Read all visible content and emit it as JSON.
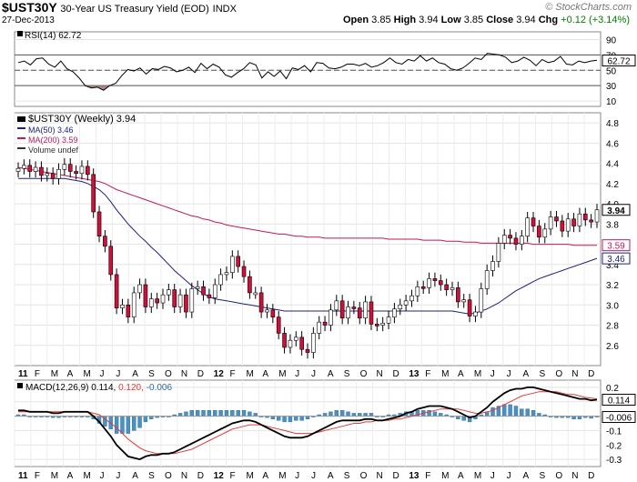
{
  "header": {
    "symbol": "$UST30Y",
    "description": "30-Year US Treasury Yield (EOD)",
    "exchange": "INDX",
    "date": "27-Dec-2013",
    "open_label": "Open",
    "open": "3.85",
    "high_label": "High",
    "high": "3.94",
    "low_label": "Low",
    "low": "3.85",
    "close_label": "Close",
    "close": "3.94",
    "chg_label": "Chg",
    "chg": "+0.12 (+3.14%)",
    "credit": "© StockCharts.com"
  },
  "rsi": {
    "label": "RSI(14)",
    "value": "62.72",
    "levels": [
      70,
      30
    ],
    "ticks": [
      90,
      70,
      50,
      30,
      10
    ],
    "values": [
      60,
      62,
      57,
      65,
      66,
      58,
      54,
      62,
      52,
      48,
      40,
      30,
      27,
      28,
      24,
      30,
      33,
      43,
      51,
      49,
      53,
      45,
      52,
      51,
      55,
      53,
      48,
      50,
      54,
      47,
      59,
      52,
      58,
      54,
      44,
      41,
      47,
      52,
      60,
      57,
      40,
      48,
      42,
      49,
      39,
      53,
      51,
      56,
      48,
      60,
      59,
      53,
      52,
      54,
      58,
      58,
      56,
      59,
      54,
      56,
      60,
      66,
      60,
      58,
      64,
      62,
      69,
      62,
      66,
      60,
      58,
      52,
      50,
      53,
      59,
      66,
      64,
      72,
      71,
      70,
      67,
      60,
      62,
      67,
      63,
      56,
      64,
      60,
      62,
      68,
      58,
      57,
      62,
      60,
      62,
      63
    ]
  },
  "chart_data": {
    "type": "candlestick",
    "title": "$UST30Y (Weekly) 3.94",
    "legend": [
      {
        "name": "$UST30Y (Weekly) 3.94",
        "color": "#000000"
      },
      {
        "name": "MA(50) 3.46",
        "color": "#1a237e"
      },
      {
        "name": "MA(200) 3.59",
        "color": "#c2185b"
      },
      {
        "name": "Volume undef",
        "color": "#333333"
      }
    ],
    "ylim": [
      2.4,
      4.9
    ],
    "y_ticks": [
      4.8,
      4.6,
      4.4,
      4.2,
      4.0,
      3.8,
      3.6,
      3.4,
      3.2,
      3.0,
      2.8,
      2.6
    ],
    "y_tick_labels": [
      "4.8",
      "4.6",
      "4.4",
      "4.2",
      "4.0",
      "3.8",
      "3.6",
      "3.4",
      "3.2",
      "3.0",
      "2.8",
      "2.6"
    ],
    "price_labels": [
      {
        "text": "3.94",
        "value": 3.94,
        "color": "#000000",
        "bold": true
      },
      {
        "text": "3.59",
        "value": 3.59,
        "color": "#c2185b",
        "bold": false
      },
      {
        "text": "3.46",
        "value": 3.46,
        "color": "#1a237e",
        "bold": false
      }
    ],
    "close": [
      4.35,
      4.38,
      4.32,
      4.36,
      4.28,
      4.3,
      4.25,
      4.34,
      4.39,
      4.32,
      4.3,
      4.37,
      4.29,
      3.92,
      3.68,
      3.58,
      3.3,
      2.97,
      3.0,
      2.88,
      3.12,
      3.2,
      2.98,
      3.06,
      3.02,
      3.1,
      3.15,
      2.98,
      3.1,
      2.93,
      3.16,
      3.18,
      3.1,
      3.07,
      3.2,
      3.3,
      3.32,
      3.48,
      3.38,
      3.28,
      3.12,
      3.12,
      2.93,
      2.95,
      2.88,
      2.72,
      2.58,
      2.65,
      2.68,
      2.56,
      2.53,
      2.72,
      2.83,
      2.8,
      2.95,
      3.04,
      2.87,
      2.98,
      2.97,
      2.87,
      3.03,
      2.81,
      2.8,
      2.82,
      2.88,
      2.96,
      3.0,
      3.04,
      3.09,
      3.18,
      3.17,
      3.26,
      3.24,
      3.2,
      3.15,
      3.17,
      3.03,
      3.05,
      2.89,
      2.93,
      3.16,
      3.34,
      3.43,
      3.61,
      3.69,
      3.66,
      3.6,
      3.68,
      3.86,
      3.78,
      3.67,
      3.75,
      3.87,
      3.83,
      3.73,
      3.85,
      3.78,
      3.9,
      3.84,
      3.82,
      3.94
    ],
    "ma50": [
      4.25,
      4.25,
      4.25,
      4.25,
      4.25,
      4.25,
      4.25,
      4.25,
      4.25,
      4.24,
      4.23,
      4.22,
      4.2,
      4.17,
      4.14,
      4.09,
      4.02,
      3.94,
      3.87,
      3.8,
      3.74,
      3.68,
      3.63,
      3.57,
      3.52,
      3.46,
      3.4,
      3.34,
      3.29,
      3.24,
      3.19,
      3.15,
      3.11,
      3.08,
      3.06,
      3.05,
      3.04,
      3.03,
      3.02,
      3.01,
      3.0,
      2.99,
      2.98,
      2.97,
      2.96,
      2.95,
      2.94,
      2.94,
      2.94,
      2.94,
      2.94,
      2.94,
      2.94,
      2.94,
      2.94,
      2.94,
      2.94,
      2.94,
      2.94,
      2.94,
      2.94,
      2.94,
      2.94,
      2.94,
      2.94,
      2.94,
      2.94,
      2.94,
      2.94,
      2.94,
      2.94,
      2.94,
      2.94,
      2.94,
      2.94,
      2.94,
      2.93,
      2.92,
      2.91,
      2.92,
      2.94,
      2.96,
      2.99,
      3.02,
      3.06,
      3.1,
      3.14,
      3.17,
      3.2,
      3.23,
      3.26,
      3.28,
      3.3,
      3.32,
      3.34,
      3.36,
      3.38,
      3.4,
      3.42,
      3.44,
      3.46
    ],
    "ma200": [
      4.36,
      4.35,
      4.34,
      4.33,
      4.32,
      4.31,
      4.3,
      4.29,
      4.28,
      4.27,
      4.26,
      4.25,
      4.24,
      4.23,
      4.22,
      4.2,
      4.17,
      4.14,
      4.12,
      4.1,
      4.08,
      4.06,
      4.04,
      4.02,
      4.0,
      3.98,
      3.96,
      3.94,
      3.92,
      3.9,
      3.88,
      3.87,
      3.85,
      3.84,
      3.82,
      3.81,
      3.79,
      3.78,
      3.77,
      3.76,
      3.75,
      3.74,
      3.73,
      3.72,
      3.71,
      3.7,
      3.7,
      3.69,
      3.68,
      3.68,
      3.67,
      3.67,
      3.67,
      3.66,
      3.66,
      3.66,
      3.66,
      3.66,
      3.66,
      3.66,
      3.66,
      3.66,
      3.66,
      3.66,
      3.65,
      3.65,
      3.65,
      3.65,
      3.65,
      3.65,
      3.64,
      3.64,
      3.64,
      3.64,
      3.63,
      3.63,
      3.63,
      3.62,
      3.62,
      3.62,
      3.61,
      3.61,
      3.61,
      3.61,
      3.61,
      3.61,
      3.61,
      3.61,
      3.61,
      3.6,
      3.6,
      3.6,
      3.6,
      3.6,
      3.6,
      3.6,
      3.59,
      3.59,
      3.59,
      3.59,
      3.59
    ],
    "x_labels": [
      "11",
      "F",
      "M",
      "A",
      "M",
      "J",
      "J",
      "A",
      "S",
      "O",
      "N",
      "D",
      "12",
      "F",
      "M",
      "A",
      "M",
      "J",
      "J",
      "A",
      "S",
      "O",
      "N",
      "D",
      "13",
      "F",
      "M",
      "A",
      "M",
      "J",
      "J",
      "A",
      "S",
      "O",
      "N",
      "D"
    ],
    "x_label_bold": [
      "11",
      "12",
      "13"
    ]
  },
  "macd": {
    "label": "MACD(12,26,9)",
    "macd_value": "0.114",
    "signal_value": "0.120",
    "hist_value": "-0.006",
    "ylim": [
      -0.35,
      0.25
    ],
    "ticks": [
      0.2,
      0.1,
      0.0,
      -0.1,
      -0.2,
      -0.3
    ],
    "tick_labels": [
      "0.2",
      "0.1",
      "0.0",
      "-0.1",
      "-0.2",
      "-0.3"
    ],
    "price_labels": [
      {
        "text": "0.114",
        "value": 0.114
      },
      {
        "text": "-0.006",
        "value": -0.006
      }
    ],
    "macd_line": [
      0.04,
      0.04,
      0.03,
      0.03,
      0.03,
      0.03,
      0.02,
      0.02,
      0.03,
      0.03,
      0.03,
      0.03,
      0.03,
      0.0,
      -0.04,
      -0.09,
      -0.14,
      -0.2,
      -0.24,
      -0.28,
      -0.29,
      -0.3,
      -0.28,
      -0.27,
      -0.27,
      -0.26,
      -0.26,
      -0.25,
      -0.23,
      -0.21,
      -0.19,
      -0.17,
      -0.15,
      -0.13,
      -0.11,
      -0.09,
      -0.07,
      -0.05,
      -0.04,
      -0.03,
      -0.03,
      -0.04,
      -0.06,
      -0.08,
      -0.1,
      -0.12,
      -0.14,
      -0.15,
      -0.15,
      -0.15,
      -0.14,
      -0.12,
      -0.1,
      -0.08,
      -0.06,
      -0.04,
      -0.03,
      -0.03,
      -0.03,
      -0.03,
      -0.02,
      -0.02,
      -0.03,
      -0.03,
      -0.02,
      -0.01,
      0.0,
      0.02,
      0.03,
      0.05,
      0.06,
      0.07,
      0.07,
      0.07,
      0.06,
      0.05,
      0.03,
      0.01,
      -0.01,
      0.0,
      0.03,
      0.06,
      0.1,
      0.13,
      0.16,
      0.18,
      0.19,
      0.19,
      0.2,
      0.2,
      0.19,
      0.18,
      0.17,
      0.16,
      0.15,
      0.14,
      0.13,
      0.12,
      0.12,
      0.11,
      0.114
    ],
    "signal_line": [
      0.03,
      0.03,
      0.03,
      0.03,
      0.03,
      0.03,
      0.03,
      0.03,
      0.03,
      0.03,
      0.03,
      0.03,
      0.03,
      0.02,
      0.01,
      -0.02,
      -0.05,
      -0.08,
      -0.12,
      -0.16,
      -0.19,
      -0.22,
      -0.24,
      -0.25,
      -0.26,
      -0.26,
      -0.26,
      -0.26,
      -0.25,
      -0.24,
      -0.23,
      -0.21,
      -0.19,
      -0.17,
      -0.15,
      -0.13,
      -0.11,
      -0.09,
      -0.08,
      -0.07,
      -0.06,
      -0.06,
      -0.06,
      -0.07,
      -0.08,
      -0.09,
      -0.1,
      -0.11,
      -0.12,
      -0.12,
      -0.12,
      -0.12,
      -0.11,
      -0.1,
      -0.09,
      -0.08,
      -0.07,
      -0.06,
      -0.05,
      -0.05,
      -0.04,
      -0.04,
      -0.03,
      -0.03,
      -0.03,
      -0.02,
      -0.02,
      -0.01,
      0.0,
      0.01,
      0.02,
      0.03,
      0.04,
      0.05,
      0.05,
      0.05,
      0.05,
      0.04,
      0.03,
      0.02,
      0.02,
      0.03,
      0.04,
      0.06,
      0.08,
      0.1,
      0.12,
      0.14,
      0.15,
      0.16,
      0.17,
      0.17,
      0.17,
      0.17,
      0.16,
      0.15,
      0.15,
      0.14,
      0.13,
      0.125,
      0.12
    ]
  }
}
